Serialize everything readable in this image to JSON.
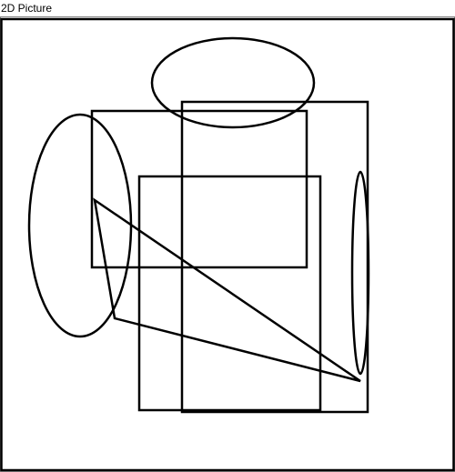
{
  "window": {
    "title": "2D Picture"
  },
  "canvas": {
    "background_color": "#ffffff",
    "border_color": "#000000",
    "stroke_color": "#000000",
    "shapes": [
      {
        "kind": "ellipse",
        "name": "ellipse-top"
      },
      {
        "kind": "ellipse",
        "name": "ellipse-left"
      },
      {
        "kind": "ellipse",
        "name": "ellipse-right-narrow"
      },
      {
        "kind": "rectangle",
        "name": "rectangle-upper-left"
      },
      {
        "kind": "rectangle",
        "name": "rectangle-tall-right"
      },
      {
        "kind": "rectangle",
        "name": "rectangle-center"
      },
      {
        "kind": "triangle",
        "name": "triangle"
      }
    ]
  }
}
